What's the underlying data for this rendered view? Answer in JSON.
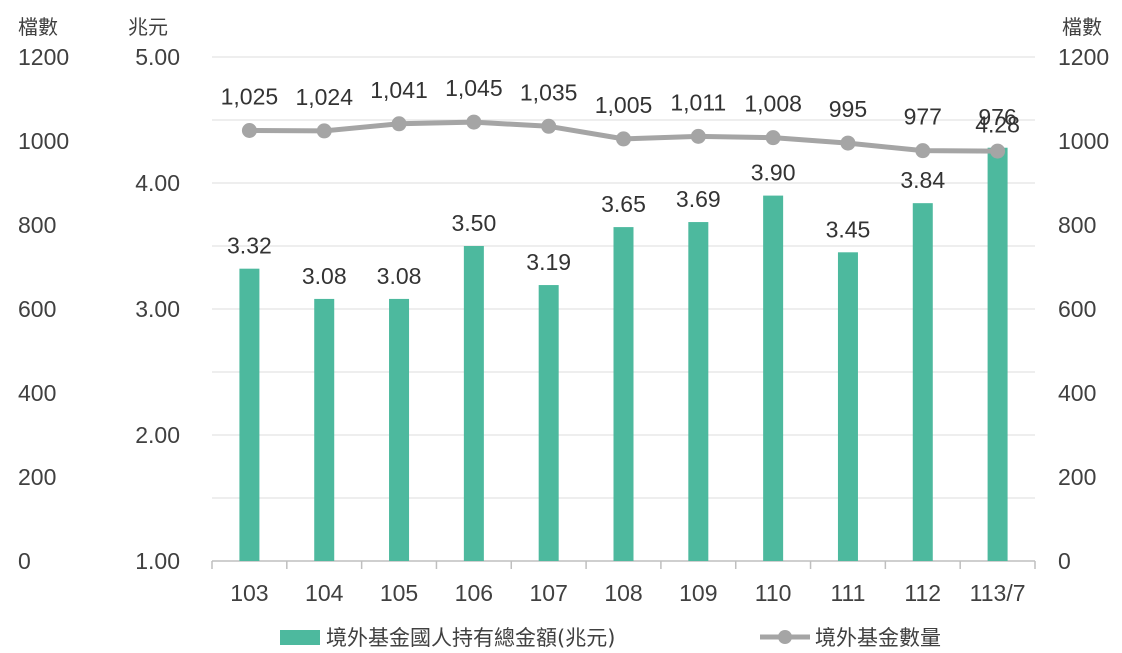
{
  "chart_data": {
    "type": "bar",
    "categories": [
      "103",
      "104",
      "105",
      "106",
      "107",
      "108",
      "109",
      "110",
      "111",
      "112",
      "113/7"
    ],
    "series": [
      {
        "name": "境外基金國人持有總金額(兆元)",
        "type": "bar",
        "axis": "middle",
        "values": [
          3.32,
          3.08,
          3.08,
          3.5,
          3.19,
          3.65,
          3.69,
          3.9,
          3.45,
          3.84,
          4.28
        ],
        "labels": [
          "3.32",
          "3.08",
          "3.08",
          "3.50",
          "3.19",
          "3.65",
          "3.69",
          "3.90",
          "3.45",
          "3.84",
          "4.28"
        ],
        "color": "#4DB99E"
      },
      {
        "name": "境外基金數量",
        "type": "line",
        "axis": "count",
        "values": [
          1025,
          1024,
          1041,
          1045,
          1035,
          1005,
          1011,
          1008,
          995,
          977,
          976
        ],
        "labels": [
          "1,025",
          "1,024",
          "1,041",
          "1,045",
          "1,035",
          "1,005",
          "1,011",
          "1,008",
          "995",
          "977",
          "976"
        ],
        "color": "#A5A5A5"
      }
    ],
    "axes": {
      "left": {
        "unit": "檔數",
        "ticks": [
          "1200",
          "1000",
          "800",
          "600",
          "400",
          "200",
          "0"
        ],
        "range": [
          0,
          1200
        ]
      },
      "middle": {
        "unit": "兆元",
        "ticks": [
          "5.00",
          "4.00",
          "3.00",
          "2.00",
          "1.00"
        ],
        "range": [
          1.0,
          5.0
        ]
      },
      "right": {
        "unit": "檔數",
        "ticks": [
          "1200",
          "1000",
          "800",
          "600",
          "400",
          "200",
          "0"
        ],
        "range": [
          0,
          1200
        ]
      }
    },
    "grid": true,
    "legend": "bottom"
  }
}
